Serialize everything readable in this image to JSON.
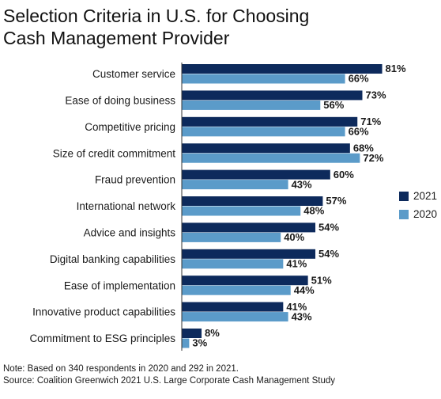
{
  "title_lines": [
    "Selection Criteria in U.S. for Choosing",
    "Cash Management Provider"
  ],
  "notes": {
    "note": "Note: Based on 340 respondents in 2020 and 292 in 2021.",
    "source": "Source: Coalition Greenwich 2021 U.S. Large Corporate Cash Management Study"
  },
  "chart_data": {
    "type": "bar",
    "orientation": "horizontal",
    "title": "Selection Criteria in U.S. for Choosing Cash Management Provider",
    "categories": [
      "Customer service",
      "Ease of doing business",
      "Competitive pricing",
      "Size of credit commitment",
      "Fraud prevention",
      "International network",
      "Advice and insights",
      "Digital banking capabilities",
      "Ease of implementation",
      "Innovative product capabilities",
      "Commitment to ESG principles"
    ],
    "series": [
      {
        "name": "2021",
        "color": "#0d2a5c",
        "values": [
          81,
          73,
          71,
          68,
          60,
          57,
          54,
          54,
          51,
          41,
          8
        ]
      },
      {
        "name": "2020",
        "color": "#5b9bc9",
        "values": [
          66,
          56,
          66,
          72,
          43,
          48,
          40,
          41,
          44,
          43,
          3
        ]
      }
    ],
    "value_suffix": "%",
    "xlim": [
      0,
      100
    ],
    "grid": false,
    "legend": "right"
  }
}
